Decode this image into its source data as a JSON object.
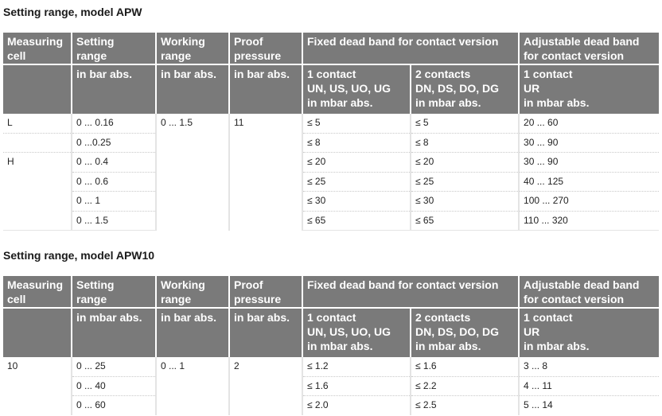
{
  "table1": {
    "title": "Setting range, model APW",
    "headers": {
      "measuring_cell": [
        "Measuring",
        "cell"
      ],
      "setting_range": [
        "Setting",
        "range"
      ],
      "working_range": [
        "Working",
        "range"
      ],
      "proof_pressure": [
        "Proof",
        "pressure"
      ],
      "fixed_dead_band": "Fixed dead band for contact version",
      "adjustable_dead_band": [
        "Adjustable dead band",
        "for contact version"
      ],
      "unit_setting": "in bar abs.",
      "unit_working": "in bar abs.",
      "unit_proof": "in bar abs.",
      "one_contact": [
        "1 contact",
        "UN, US, UO, UG",
        "in mbar abs."
      ],
      "two_contacts": [
        "2 contacts",
        "DN, DS, DO, DG",
        "in mbar abs."
      ],
      "adj_one_contact": [
        "1 contact",
        "UR",
        "in mbar abs."
      ]
    },
    "rows": [
      {
        "cell": "L",
        "setting": "0 ... 0.16",
        "working": "0 ... 1.5",
        "proof": "11",
        "c1": "≤ 5",
        "c2": "≤ 5",
        "adj": "20 ... 60"
      },
      {
        "cell": "",
        "setting": "0 ...0.25",
        "working": "",
        "proof": "",
        "c1": "≤ 8",
        "c2": "≤ 8",
        "adj": "30 ... 90"
      },
      {
        "cell": "H",
        "setting": "0 ... 0.4",
        "working": "",
        "proof": "",
        "c1": "≤ 20",
        "c2": "≤ 20",
        "adj": "30 ... 90"
      },
      {
        "cell": "",
        "setting": "0 ... 0.6",
        "working": "",
        "proof": "",
        "c1": "≤ 25",
        "c2": "≤ 25",
        "adj": "40 ... 125"
      },
      {
        "cell": "",
        "setting": "0 ... 1",
        "working": "",
        "proof": "",
        "c1": "≤ 30",
        "c2": "≤ 30",
        "adj": "100 ... 270"
      },
      {
        "cell": "",
        "setting": "0 ... 1.5",
        "working": "",
        "proof": "",
        "c1": "≤ 65",
        "c2": "≤ 65",
        "adj": "110 ... 320"
      }
    ]
  },
  "table2": {
    "title": "Setting range, model APW10",
    "headers": {
      "measuring_cell": [
        "Measuring",
        "cell"
      ],
      "setting_range": [
        "Setting",
        "range"
      ],
      "working_range": [
        "Working",
        "range"
      ],
      "proof_pressure": [
        "Proof",
        "pressure"
      ],
      "fixed_dead_band": "Fixed dead band for contact version",
      "adjustable_dead_band": [
        "Adjustable dead band",
        "for contact version"
      ],
      "unit_setting": "in mbar abs.",
      "unit_working": "in bar abs.",
      "unit_proof": "in bar abs.",
      "one_contact": [
        "1 contact",
        "UN, US, UO, UG",
        "in mbar abs."
      ],
      "two_contacts": [
        "2 contacts",
        "DN, DS, DO, DG",
        "in mbar abs."
      ],
      "adj_one_contact": [
        "1 contact",
        "UR",
        "in mbar abs."
      ]
    },
    "rows": [
      {
        "cell": "10",
        "setting": "0 ... 25",
        "working": "0 ... 1",
        "proof": "2",
        "c1": "≤ 1.2",
        "c2": "≤ 1.6",
        "adj": "3 ... 8"
      },
      {
        "cell": "",
        "setting": "0 ... 40",
        "working": "",
        "proof": "",
        "c1": "≤ 1.6",
        "c2": "≤ 2.2",
        "adj": "4 ... 11"
      },
      {
        "cell": "",
        "setting": "0 ... 60",
        "working": "",
        "proof": "",
        "c1": "≤ 2.0",
        "c2": "≤ 2.5",
        "adj": "5 ... 14"
      }
    ]
  }
}
